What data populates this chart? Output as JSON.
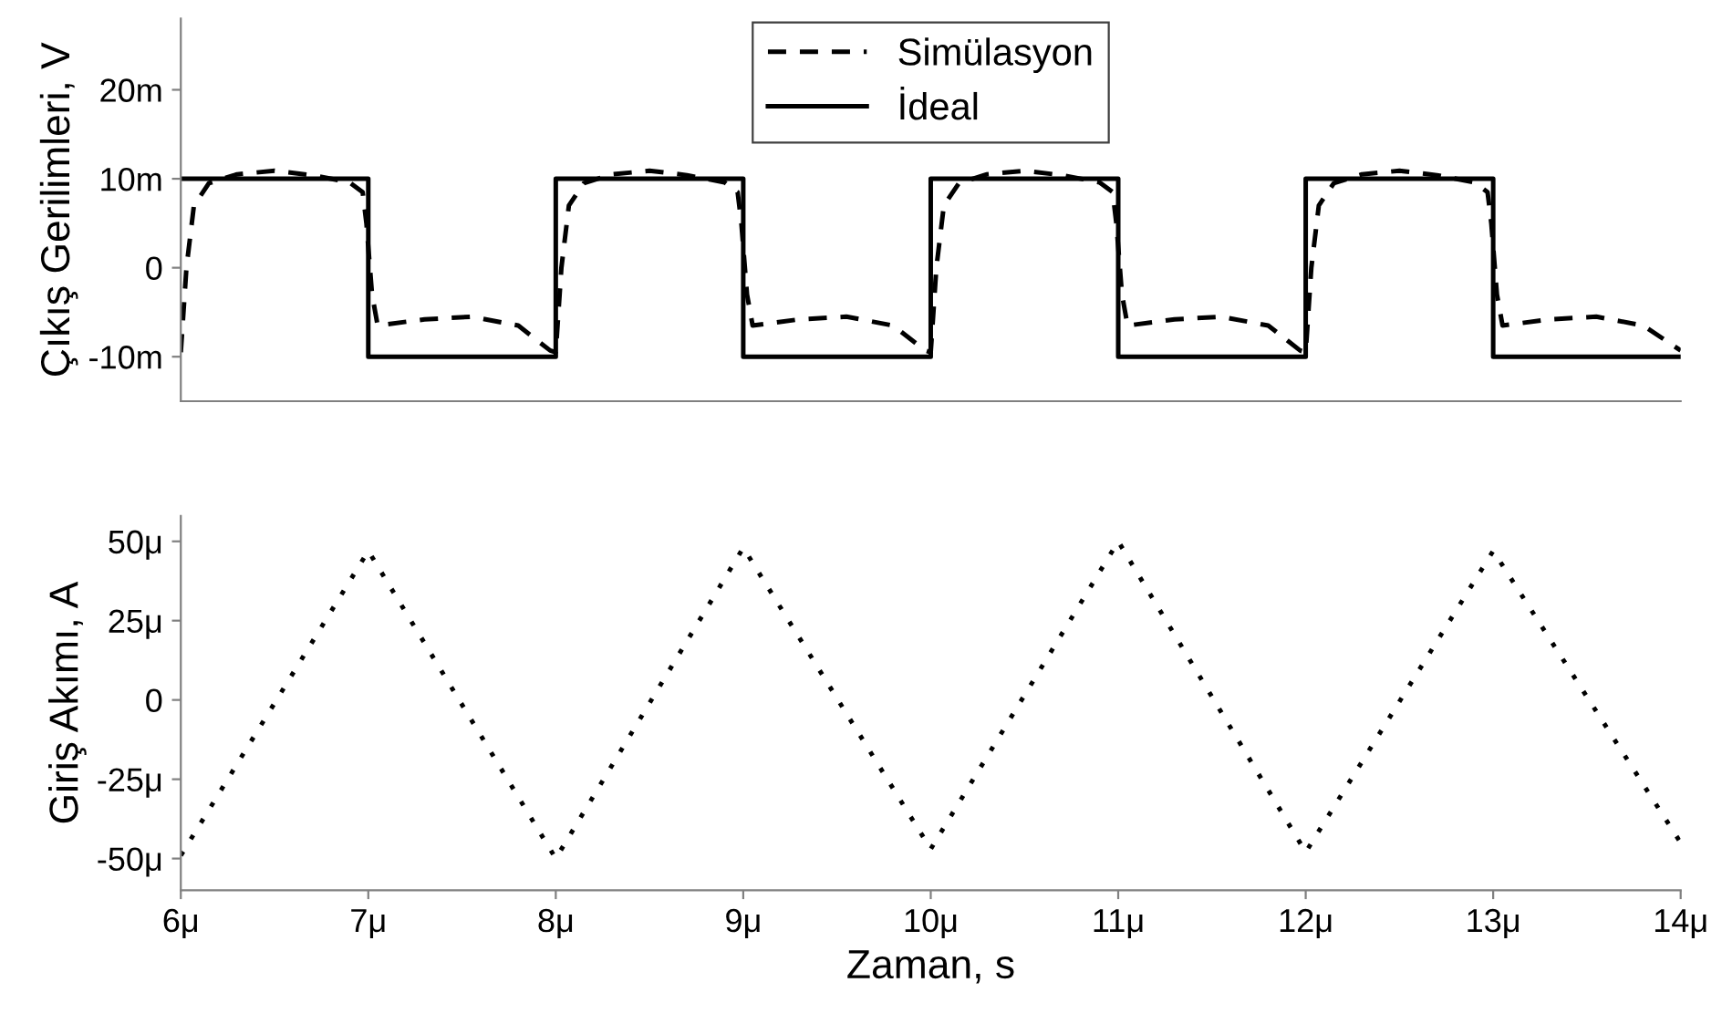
{
  "chart_data": [
    {
      "type": "line",
      "ylabel": "Çıkış Gerilimleri, V",
      "legend": "top",
      "tick_labels": "y",
      "xlim": [
        6,
        14
      ],
      "ylim": [
        -15,
        28
      ],
      "yticks": [
        {
          "value": -10,
          "label": "-10m"
        },
        0,
        {
          "value": 10,
          "label": "10m"
        },
        {
          "value": 20,
          "label": "20m"
        }
      ],
      "series": [
        {
          "name": "Simülasyon",
          "color": "#000000",
          "line_style": "dashed",
          "x": [
            6.0,
            6.03,
            6.07,
            6.15,
            6.3,
            6.5,
            6.7,
            6.9,
            6.97,
            6.99,
            7.02,
            7.05,
            7.3,
            7.55,
            7.8,
            7.97,
            8.0,
            8.03,
            8.07,
            8.15,
            8.3,
            8.5,
            8.7,
            8.9,
            8.97,
            8.99,
            9.02,
            9.05,
            9.3,
            9.55,
            9.8,
            9.97,
            10.0,
            10.03,
            10.07,
            10.15,
            10.3,
            10.5,
            10.7,
            10.9,
            10.97,
            10.99,
            11.02,
            11.05,
            11.3,
            11.55,
            11.8,
            11.97,
            12.0,
            12.03,
            12.07,
            12.15,
            12.3,
            12.5,
            12.7,
            12.9,
            12.97,
            12.99,
            13.02,
            13.05,
            13.3,
            13.55,
            13.8,
            14.0
          ],
          "values": [
            -9.5,
            0,
            7,
            9.5,
            10.5,
            10.9,
            10.4,
            9.6,
            8.5,
            5,
            -3,
            -6.5,
            -5.8,
            -5.5,
            -6.5,
            -9.3,
            -9.5,
            0,
            7,
            9.5,
            10.5,
            10.9,
            10.4,
            9.6,
            8.5,
            5,
            -3,
            -6.5,
            -5.8,
            -5.5,
            -6.5,
            -9.3,
            -9.5,
            0,
            7,
            9.5,
            10.5,
            10.9,
            10.4,
            9.6,
            8.5,
            5,
            -3,
            -6.5,
            -5.8,
            -5.5,
            -6.5,
            -9.3,
            -9.5,
            0,
            7,
            9.5,
            10.5,
            10.9,
            10.4,
            9.6,
            8.5,
            5,
            -3,
            -6.5,
            -5.8,
            -5.5,
            -6.5,
            -9.3
          ]
        },
        {
          "name": "İdeal",
          "color": "#000000",
          "line_style": "solid",
          "type": "step",
          "x": [
            6,
            7,
            8,
            9,
            10,
            11,
            12,
            13,
            14
          ],
          "values": [
            10,
            -10,
            10,
            -10,
            10,
            -10,
            10,
            -10,
            -10
          ]
        }
      ]
    },
    {
      "type": "line",
      "ylabel": "Giriş Akımı, A",
      "xlabel": "Zaman, s",
      "legend": false,
      "xlim": [
        6,
        14
      ],
      "ylim": [
        -60,
        58
      ],
      "xticks": [
        {
          "value": 6,
          "label": "6μ"
        },
        {
          "value": 7,
          "label": "7μ"
        },
        {
          "value": 8,
          "label": "8μ"
        },
        {
          "value": 9,
          "label": "9μ"
        },
        {
          "value": 10,
          "label": "10μ"
        },
        {
          "value": 11,
          "label": "11μ"
        },
        {
          "value": 12,
          "label": "12μ"
        },
        {
          "value": 13,
          "label": "13μ"
        },
        {
          "value": 14,
          "label": "14μ"
        }
      ],
      "yticks": [
        {
          "value": -50,
          "label": "-50μ"
        },
        {
          "value": -25,
          "label": "-25μ"
        },
        0,
        {
          "value": 25,
          "label": "25μ"
        },
        {
          "value": 50,
          "label": "50μ"
        }
      ],
      "series": [
        {
          "color": "#000000",
          "line_style": "dotted",
          "x": [
            6,
            7,
            8,
            9,
            10,
            11,
            12,
            13,
            14
          ],
          "values": [
            -49,
            47,
            -50,
            48,
            -47,
            50,
            -48,
            47,
            -45
          ]
        }
      ]
    }
  ]
}
